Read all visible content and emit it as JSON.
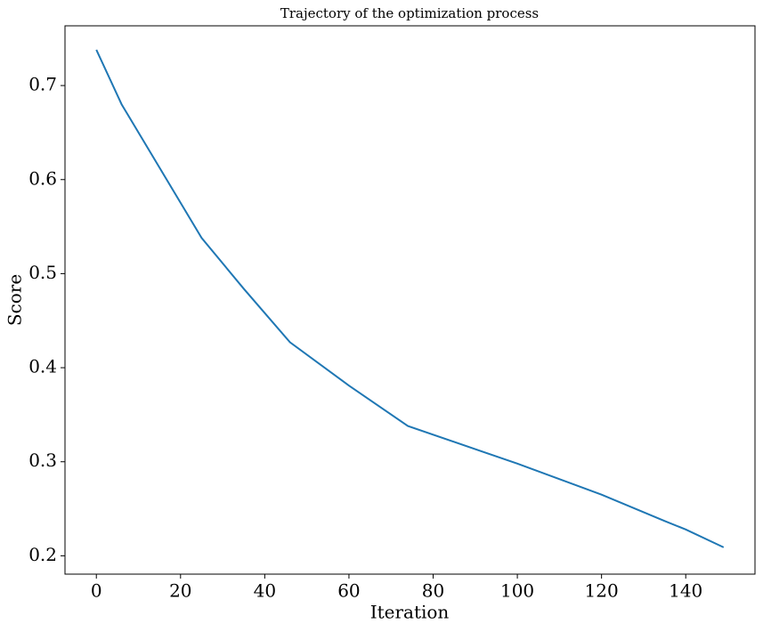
{
  "chart_data": {
    "type": "line",
    "title": "Trajectory of the optimization process",
    "x_label": "Iteration",
    "y_label": "Score",
    "x": [
      0,
      6,
      25,
      35,
      46,
      60,
      74,
      100,
      120,
      135,
      140,
      149
    ],
    "series": [
      {
        "name": "Score",
        "color": "#1f77b4",
        "values": [
          0.738,
          0.68,
          0.538,
          0.484,
          0.427,
          0.381,
          0.338,
          0.298,
          0.265,
          0.237,
          0.228,
          0.209
        ]
      }
    ],
    "xlim": [
      -7.45,
      156.45
    ],
    "xticks": [
      0,
      20,
      40,
      60,
      80,
      100,
      120,
      140
    ],
    "ylim": [
      0.1805,
      0.7635
    ],
    "yticks": [
      0.2,
      0.3,
      0.4,
      0.5,
      0.6,
      0.7
    ],
    "grid": false,
    "legend": false
  }
}
